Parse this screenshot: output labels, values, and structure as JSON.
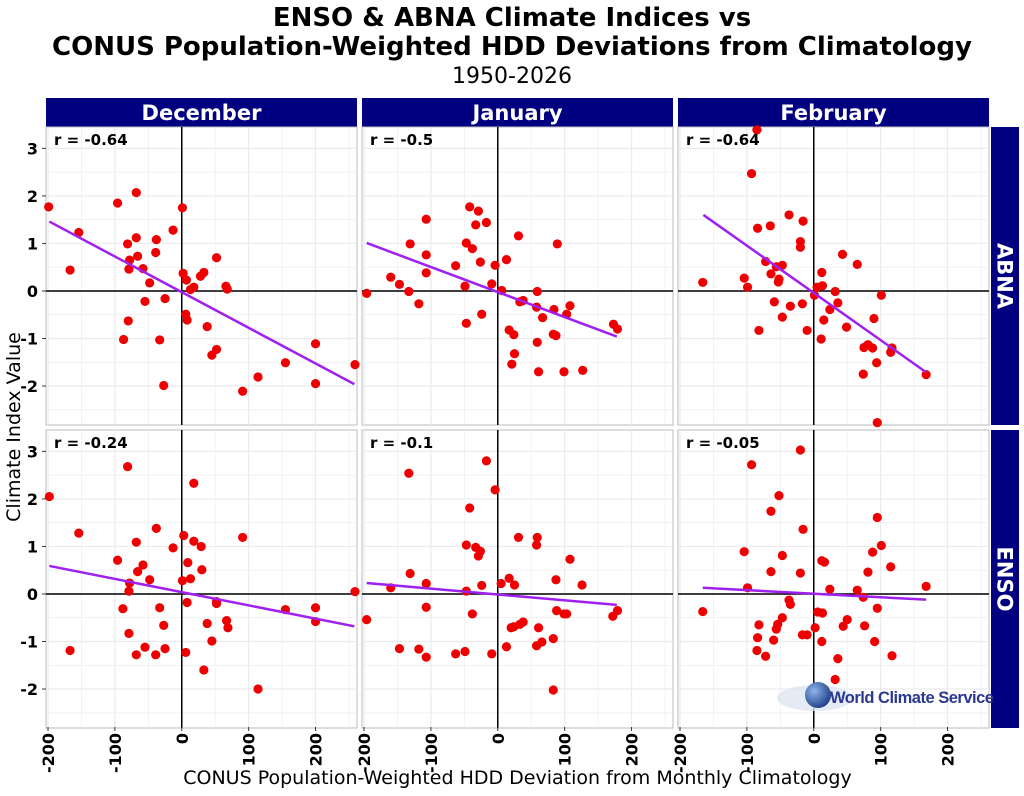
{
  "chart_data": {
    "type": "scatter",
    "title": "ENSO & ABNA Climate Indices vs",
    "title_line2": "CONUS Population-Weighted HDD Deviations from Climatology",
    "subtitle": "1950-2026",
    "xlabel": "CONUS Population-Weighted HDD Deviation from Monthly Climatology",
    "ylabel": "Climate Index Value",
    "xlim": [
      -203,
      262
    ],
    "ylim": [
      -2.82,
      3.45
    ],
    "x_ticks": [
      -200,
      -100,
      0,
      100,
      200
    ],
    "y_ticks": [
      -2,
      -1,
      0,
      1,
      2,
      3
    ],
    "grid": true,
    "columns": [
      "December",
      "January",
      "February"
    ],
    "rows": [
      "ABNA",
      "ENSO"
    ],
    "colors": {
      "points": "#ee0000",
      "trend": "#a020f0",
      "strip": "#000080"
    },
    "panels": [
      {
        "row": "ABNA",
        "column": "December",
        "r_label": "r = -0.64",
        "trend": [
          [
            -198,
            1.46
          ],
          [
            258,
            -1.96
          ]
        ],
        "points": [
          [
            -199,
            1.77
          ],
          [
            -154,
            1.23
          ],
          [
            -167,
            0.44
          ],
          [
            -96,
            1.85
          ],
          [
            -68,
            2.07
          ],
          [
            -81,
            0.99
          ],
          [
            -68,
            1.12
          ],
          [
            -78,
            0.65
          ],
          [
            -79,
            0.46
          ],
          [
            -66,
            0.73
          ],
          [
            -58,
            0.47
          ],
          [
            -48,
            0.17
          ],
          [
            -38,
            1.08
          ],
          [
            -39,
            0.81
          ],
          [
            -13,
            1.28
          ],
          [
            1,
            1.75
          ],
          [
            2,
            0.37
          ],
          [
            7,
            0.23
          ],
          [
            13,
            0.03
          ],
          [
            18,
            0.08
          ],
          [
            28,
            0.31
          ],
          [
            33,
            0.39
          ],
          [
            52,
            0.7
          ],
          [
            66,
            0.1
          ],
          [
            68,
            0.04
          ],
          [
            -55,
            -0.22
          ],
          [
            -25,
            -0.16
          ],
          [
            -80,
            -0.63
          ],
          [
            -87,
            -1.02
          ],
          [
            -33,
            -1.03
          ],
          [
            -27,
            -1.99
          ],
          [
            6,
            -0.49
          ],
          [
            8,
            -0.61
          ],
          [
            38,
            -0.75
          ],
          [
            52,
            -1.23
          ],
          [
            45,
            -1.35
          ],
          [
            91,
            -2.11
          ],
          [
            114,
            -1.81
          ],
          [
            155,
            -1.51
          ],
          [
            200,
            -1.11
          ],
          [
            200,
            -1.95
          ],
          [
            259,
            -1.55
          ]
        ]
      },
      {
        "row": "ABNA",
        "column": "January",
        "r_label": "r = -0.5",
        "trend": [
          [
            -196,
            1.01
          ],
          [
            178,
            -0.96
          ]
        ],
        "points": [
          [
            -196,
            -0.05
          ],
          [
            -160,
            0.29
          ],
          [
            -147,
            0.14
          ],
          [
            -133,
            -0.01
          ],
          [
            -131,
            0.99
          ],
          [
            -118,
            -0.27
          ],
          [
            -107,
            1.51
          ],
          [
            -107,
            0.76
          ],
          [
            -107,
            0.38
          ],
          [
            -63,
            0.53
          ],
          [
            -49,
            0.1
          ],
          [
            -47,
            1.01
          ],
          [
            -38,
            0.89
          ],
          [
            -42,
            1.77
          ],
          [
            -29,
            1.68
          ],
          [
            -33,
            1.39
          ],
          [
            -17,
            1.44
          ],
          [
            -26,
            0.61
          ],
          [
            -4,
            0.54
          ],
          [
            -9,
            0.15
          ],
          [
            -47,
            -0.68
          ],
          [
            -24,
            -0.49
          ],
          [
            6,
            0.01
          ],
          [
            13,
            0.66
          ],
          [
            31,
            1.16
          ],
          [
            89,
            0.99
          ],
          [
            59,
            -0.01
          ],
          [
            33,
            -0.23
          ],
          [
            38,
            -0.2
          ],
          [
            58,
            -0.34
          ],
          [
            67,
            -0.56
          ],
          [
            84,
            -0.39
          ],
          [
            103,
            -0.49
          ],
          [
            108,
            -0.31
          ],
          [
            17,
            -0.82
          ],
          [
            24,
            -0.92
          ],
          [
            83,
            -0.91
          ],
          [
            87,
            -0.94
          ],
          [
            59,
            -1.08
          ],
          [
            25,
            -1.32
          ],
          [
            21,
            -1.54
          ],
          [
            61,
            -1.7
          ],
          [
            99,
            -1.7
          ],
          [
            127,
            -1.67
          ],
          [
            173,
            -0.7
          ],
          [
            179,
            -0.8
          ]
        ]
      },
      {
        "row": "ABNA",
        "column": "February",
        "r_label": "r = -0.64",
        "trend": [
          [
            -165,
            1.6
          ],
          [
            168,
            -1.71
          ]
        ],
        "points": [
          [
            -85,
            3.39
          ],
          [
            -93,
            2.47
          ],
          [
            -166,
            0.18
          ],
          [
            -104,
            0.27
          ],
          [
            -99,
            0.08
          ],
          [
            -84,
            1.32
          ],
          [
            -65,
            1.37
          ],
          [
            -37,
            1.6
          ],
          [
            -16,
            1.47
          ],
          [
            -20,
            1.04
          ],
          [
            -20,
            0.92
          ],
          [
            -72,
            0.62
          ],
          [
            -64,
            0.36
          ],
          [
            -56,
            0.51
          ],
          [
            -47,
            0.54
          ],
          [
            -52,
            0.25
          ],
          [
            -53,
            0.19
          ],
          [
            -59,
            -0.23
          ],
          [
            -35,
            -0.32
          ],
          [
            -17,
            -0.27
          ],
          [
            -47,
            -0.55
          ],
          [
            -82,
            -0.83
          ],
          [
            -10,
            -0.83
          ],
          [
            1,
            -0.09
          ],
          [
            5,
            0.08
          ],
          [
            13,
            0.11
          ],
          [
            12,
            0.39
          ],
          [
            32,
            -0.01
          ],
          [
            36,
            -0.25
          ],
          [
            24,
            -0.39
          ],
          [
            15,
            -0.61
          ],
          [
            11,
            -1.01
          ],
          [
            43,
            0.77
          ],
          [
            65,
            0.56
          ],
          [
            49,
            -0.76
          ],
          [
            101,
            -0.09
          ],
          [
            90,
            -0.58
          ],
          [
            75,
            -1.19
          ],
          [
            81,
            -1.13
          ],
          [
            88,
            -1.2
          ],
          [
            94,
            -1.51
          ],
          [
            74,
            -1.75
          ],
          [
            115,
            -1.29
          ],
          [
            117,
            -1.2
          ],
          [
            168,
            -1.76
          ],
          [
            95,
            -2.77
          ]
        ]
      },
      {
        "row": "ENSO",
        "column": "December",
        "r_label": "r = -0.24",
        "trend": [
          [
            -198,
            0.59
          ],
          [
            258,
            -0.68
          ]
        ],
        "points": [
          [
            -198,
            2.05
          ],
          [
            -81,
            2.68
          ],
          [
            18,
            2.33
          ],
          [
            -154,
            1.28
          ],
          [
            -38,
            1.38
          ],
          [
            3,
            1.23
          ],
          [
            -68,
            1.09
          ],
          [
            18,
            1.11
          ],
          [
            29,
            1.0
          ],
          [
            -13,
            0.97
          ],
          [
            91,
            1.19
          ],
          [
            -96,
            0.71
          ],
          [
            -58,
            0.61
          ],
          [
            -66,
            0.47
          ],
          [
            9,
            0.66
          ],
          [
            30,
            0.51
          ],
          [
            -48,
            0.3
          ],
          [
            13,
            0.32
          ],
          [
            1,
            0.28
          ],
          [
            -78,
            0.23
          ],
          [
            -79,
            0.06
          ],
          [
            259,
            0.05
          ],
          [
            8,
            -0.18
          ],
          [
            52,
            -0.16
          ],
          [
            52,
            -0.2
          ],
          [
            -88,
            -0.31
          ],
          [
            -33,
            -0.29
          ],
          [
            -27,
            -0.66
          ],
          [
            38,
            -0.62
          ],
          [
            67,
            -0.56
          ],
          [
            69,
            -0.71
          ],
          [
            155,
            -0.33
          ],
          [
            200,
            -0.29
          ],
          [
            200,
            -0.58
          ],
          [
            -79,
            -0.83
          ],
          [
            45,
            -0.99
          ],
          [
            -167,
            -1.19
          ],
          [
            -55,
            -1.12
          ],
          [
            -68,
            -1.28
          ],
          [
            -39,
            -1.28
          ],
          [
            -25,
            -1.15
          ],
          [
            6,
            -1.23
          ],
          [
            33,
            -1.6
          ],
          [
            114,
            -2.0
          ]
        ]
      },
      {
        "row": "ENSO",
        "column": "January",
        "r_label": "r = -0.1",
        "trend": [
          [
            -196,
            0.23
          ],
          [
            178,
            -0.23
          ]
        ],
        "points": [
          [
            -133,
            2.54
          ],
          [
            -17,
            2.8
          ],
          [
            -4,
            2.19
          ],
          [
            -42,
            1.81
          ],
          [
            31,
            1.19
          ],
          [
            59,
            1.19
          ],
          [
            58,
            1.03
          ],
          [
            -47,
            1.03
          ],
          [
            -33,
            0.98
          ],
          [
            -26,
            0.9
          ],
          [
            -29,
            0.8
          ],
          [
            108,
            0.73
          ],
          [
            -131,
            0.43
          ],
          [
            -160,
            0.13
          ],
          [
            -107,
            0.22
          ],
          [
            -47,
            0.06
          ],
          [
            -24,
            0.18
          ],
          [
            5,
            0.22
          ],
          [
            17,
            0.33
          ],
          [
            25,
            0.19
          ],
          [
            87,
            0.3
          ],
          [
            126,
            0.19
          ],
          [
            -196,
            -0.54
          ],
          [
            -107,
            -0.28
          ],
          [
            -38,
            -0.42
          ],
          [
            88,
            -0.35
          ],
          [
            99,
            -0.42
          ],
          [
            103,
            -0.42
          ],
          [
            172,
            -0.47
          ],
          [
            179,
            -0.35
          ],
          [
            20,
            -0.71
          ],
          [
            24,
            -0.69
          ],
          [
            33,
            -0.64
          ],
          [
            38,
            -0.59
          ],
          [
            61,
            -0.71
          ],
          [
            83,
            -0.94
          ],
          [
            58,
            -1.09
          ],
          [
            66,
            -1.01
          ],
          [
            13,
            -1.11
          ],
          [
            -147,
            -1.15
          ],
          [
            -118,
            -1.16
          ],
          [
            -107,
            -1.33
          ],
          [
            -63,
            -1.26
          ],
          [
            -49,
            -1.21
          ],
          [
            -9,
            -1.26
          ],
          [
            83,
            -2.02
          ]
        ]
      },
      {
        "row": "ENSO",
        "column": "February",
        "r_label": "r = -0.05",
        "trend": [
          [
            -166,
            0.13
          ],
          [
            168,
            -0.12
          ]
        ],
        "points": [
          [
            -20,
            3.03
          ],
          [
            -93,
            2.72
          ],
          [
            -52,
            2.07
          ],
          [
            -64,
            1.74
          ],
          [
            -16,
            1.36
          ],
          [
            95,
            1.61
          ],
          [
            101,
            1.02
          ],
          [
            88,
            0.88
          ],
          [
            -104,
            0.89
          ],
          [
            -47,
            0.81
          ],
          [
            12,
            0.7
          ],
          [
            16,
            0.67
          ],
          [
            115,
            0.57
          ],
          [
            -64,
            0.47
          ],
          [
            -20,
            0.44
          ],
          [
            81,
            0.46
          ],
          [
            -99,
            0.13
          ],
          [
            24,
            0.1
          ],
          [
            65,
            0.08
          ],
          [
            168,
            0.16
          ],
          [
            74,
            -0.07
          ],
          [
            -166,
            -0.37
          ],
          [
            -37,
            -0.13
          ],
          [
            -35,
            -0.22
          ],
          [
            6,
            -0.38
          ],
          [
            13,
            -0.4
          ],
          [
            95,
            -0.3
          ],
          [
            -47,
            -0.5
          ],
          [
            -82,
            -0.65
          ],
          [
            -54,
            -0.64
          ],
          [
            -56,
            -0.74
          ],
          [
            50,
            -0.54
          ],
          [
            44,
            -0.68
          ],
          [
            76,
            -0.67
          ],
          [
            2,
            -0.71
          ],
          [
            -17,
            -0.86
          ],
          [
            -10,
            -0.86
          ],
          [
            -84,
            -0.92
          ],
          [
            -60,
            -0.97
          ],
          [
            12,
            -1.0
          ],
          [
            91,
            -1.0
          ],
          [
            -85,
            -1.19
          ],
          [
            -72,
            -1.31
          ],
          [
            36,
            -1.36
          ],
          [
            117,
            -1.3
          ],
          [
            32,
            -1.8
          ]
        ]
      }
    ]
  },
  "logo": {
    "text": "World Climate Service"
  }
}
